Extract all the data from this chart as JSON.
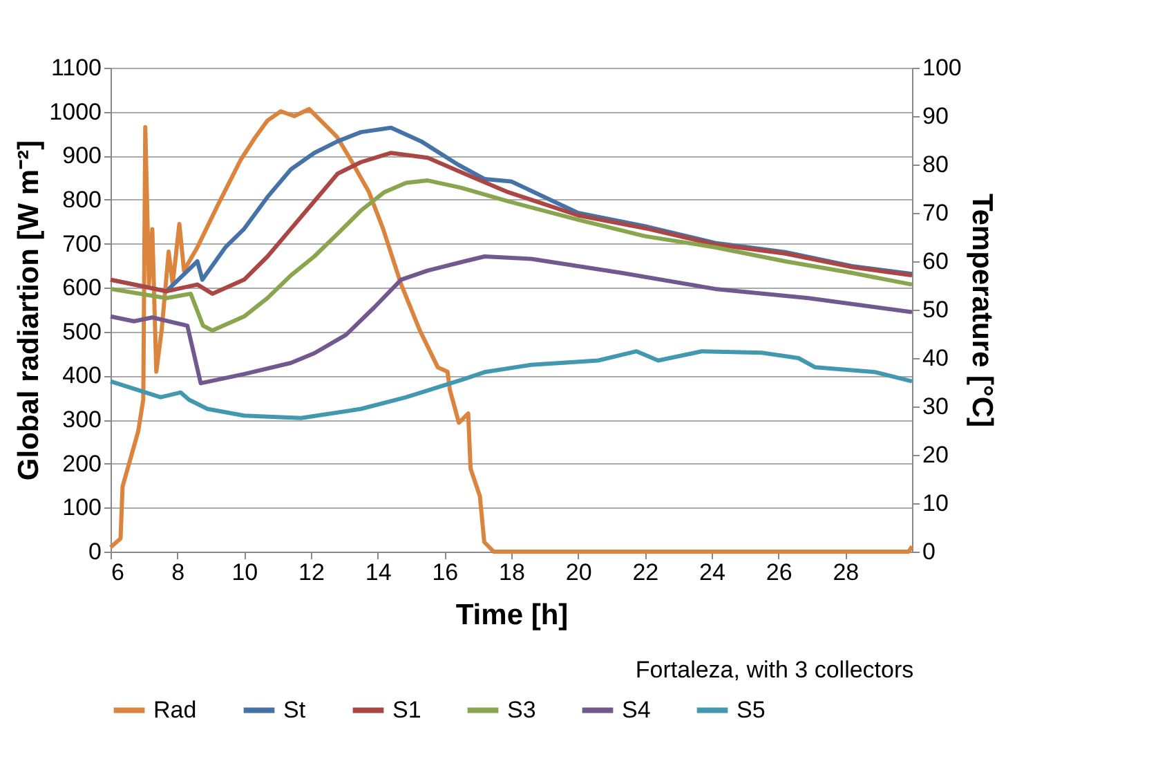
{
  "chart_data": {
    "type": "line",
    "xlabel": "Time [h]",
    "ylabel": "Global radiartion [W m⁻²]",
    "y2label": "Temperature [°C]",
    "annotations": [
      "Fortaleza, with 3 collectors"
    ],
    "xlim": [
      6,
      30
    ],
    "xticks": [
      6,
      8,
      10,
      12,
      14,
      16,
      18,
      20,
      22,
      24,
      26,
      28
    ],
    "ylim": [
      0,
      1100
    ],
    "yticks": [
      0,
      100,
      200,
      300,
      400,
      500,
      600,
      700,
      800,
      900,
      1000,
      1100
    ],
    "y2lim": [
      0,
      100
    ],
    "y2ticks": [
      0,
      10,
      20,
      30,
      40,
      50,
      60,
      70,
      80,
      90,
      100
    ],
    "grid": "y",
    "legend": "bottom",
    "series": [
      {
        "name": "Rad",
        "color": "#db843d",
        "x": [
          6,
          6.3,
          6.36,
          6.83,
          6.98,
          7.04,
          7.15,
          7.25,
          7.37,
          7.53,
          7.74,
          7.86,
          8.06,
          8.2,
          8.6,
          9.2,
          9.9,
          10.3,
          10.7,
          11.1,
          11.5,
          11.95,
          12.36,
          12.78,
          13.19,
          13.74,
          14.16,
          14.7,
          15.26,
          15.8,
          16.09,
          16.16,
          16.43,
          16.71,
          16.78,
          17.06,
          17.19,
          17.47,
          29.9,
          30
        ],
        "values": [
          10,
          30,
          148,
          274,
          346,
          965,
          608,
          733,
          409,
          503,
          682,
          608,
          745,
          639,
          692,
          786,
          891,
          938,
          980,
          1001,
          990,
          1006,
          975,
          943,
          891,
          817,
          734,
          608,
          503,
          419,
          409,
          368,
          293,
          314,
          189,
          126,
          22,
          0,
          0,
          12
        ]
      },
      {
        "name": "St",
        "color": "#4572a7",
        "axis": "y2",
        "x": [
          6,
          7,
          7.67,
          8.6,
          8.75,
          9.44,
          10,
          10.7,
          11.4,
          12.1,
          12.8,
          13.5,
          14.4,
          15.3,
          16.4,
          17.2,
          18,
          20,
          22.1,
          24.1,
          26.2,
          28.2,
          30
        ],
        "values": [
          56.2,
          54.8,
          53.8,
          60,
          56.2,
          62.9,
          66.7,
          73.3,
          79,
          82.4,
          84.8,
          86.7,
          87.6,
          84.8,
          80,
          77,
          76.5,
          70,
          67.1,
          63.8,
          61.9,
          59,
          57.4
        ]
      },
      {
        "name": "S1",
        "color": "#aa4643",
        "axis": "y2",
        "x": [
          6,
          7.67,
          8.6,
          9.05,
          10,
          10.7,
          11.4,
          12.1,
          12.8,
          13.5,
          14.4,
          15.5,
          16.6,
          17.9,
          20,
          22.1,
          24.1,
          26.2,
          28.2,
          30
        ],
        "values": [
          56.2,
          53.8,
          55.2,
          53.3,
          56.2,
          61,
          66.7,
          72.4,
          78.1,
          80.5,
          82.4,
          81.4,
          78.1,
          74.3,
          69.5,
          66.7,
          63.5,
          61.6,
          58.8,
          57.1
        ]
      },
      {
        "name": "S3",
        "color": "#89a54e",
        "axis": "y2",
        "x": [
          6,
          7.67,
          8.4,
          8.77,
          9.05,
          10,
          10.7,
          11.4,
          12.1,
          12.8,
          13.5,
          14.2,
          14.85,
          15.5,
          16.5,
          17.9,
          20,
          22,
          24.1,
          26.2,
          28.2,
          30
        ],
        "values": [
          54.3,
          52.4,
          53.3,
          46.7,
          45.7,
          48.6,
          52.4,
          57.1,
          61,
          65.7,
          70.5,
          74.3,
          76.2,
          76.7,
          75.2,
          72.4,
          68.6,
          65.2,
          62.9,
          60,
          57.6,
          55.2
        ]
      },
      {
        "name": "S4",
        "color": "#71588f",
        "axis": "y2",
        "x": [
          6,
          6.7,
          7.25,
          8.3,
          8.7,
          10,
          11.4,
          12.1,
          13.05,
          13.9,
          14.7,
          15.5,
          16.6,
          17.2,
          18.6,
          21.3,
          24.1,
          26.9,
          30
        ],
        "values": [
          48.6,
          47.6,
          48.4,
          46.7,
          34.8,
          36.7,
          39,
          41,
          44.8,
          50.5,
          56.2,
          58.1,
          60,
          61,
          60.5,
          57.6,
          54.3,
          52.4,
          49.5
        ]
      },
      {
        "name": "S5",
        "color": "#4198af",
        "axis": "y2",
        "x": [
          6,
          7.5,
          8.1,
          8.35,
          8.9,
          10,
          11.7,
          13.5,
          14.85,
          16.6,
          17.2,
          18.6,
          20.6,
          21.75,
          22.4,
          23.7,
          25.5,
          26.6,
          27.1,
          28.9,
          30
        ],
        "values": [
          35.2,
          31.9,
          32.9,
          31.4,
          29.5,
          28.1,
          27.6,
          29.5,
          31.9,
          35.7,
          37.1,
          38.6,
          39.5,
          41.4,
          39.5,
          41.4,
          41.1,
          40,
          38.1,
          37.1,
          35.2
        ]
      }
    ]
  }
}
